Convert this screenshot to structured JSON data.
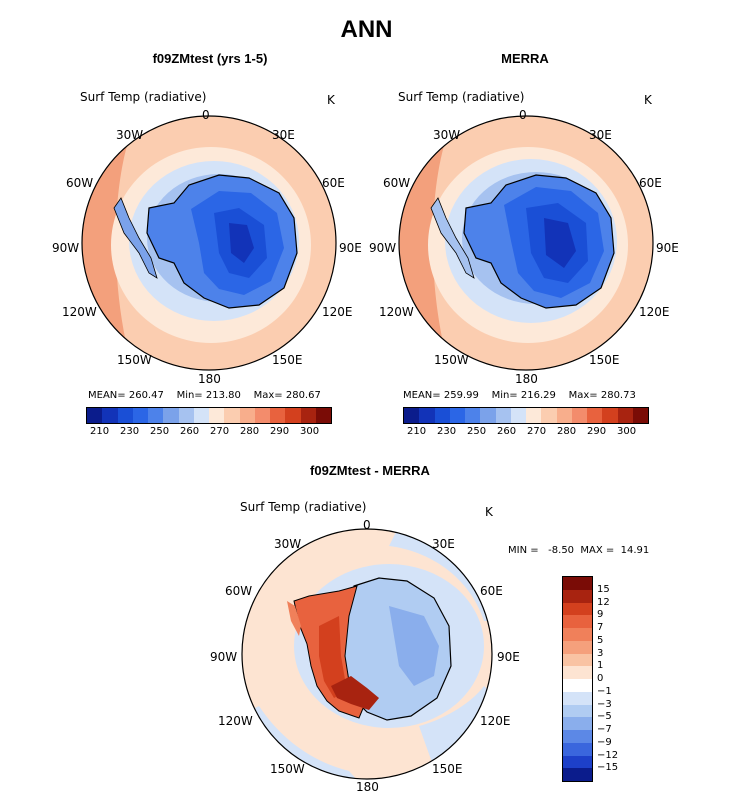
{
  "title": "ANN",
  "colors": {
    "scale_abs": [
      "#0b1c8c",
      "#1233b8",
      "#1a4fd6",
      "#2b66e6",
      "#4d82ea",
      "#7ba2ea",
      "#a6c2f0",
      "#d4e3f8",
      "#fde9d9",
      "#fbcdb0",
      "#f8ae8c",
      "#f38c6c",
      "#e8623e",
      "#d3401e",
      "#a82310",
      "#7a0c06"
    ],
    "scale_diff": [
      "#7a0c06",
      "#a82310",
      "#d3401e",
      "#e8623e",
      "#f0805a",
      "#f5a07c",
      "#f9c3a3",
      "#fde4d2",
      "#ffffff",
      "#d4e3f8",
      "#b0ccf2",
      "#8aaeec",
      "#5c88e6",
      "#3a66dd",
      "#1d40c9",
      "#0b1c8c"
    ]
  },
  "panels": [
    {
      "subtitle": "f09ZMtest (yrs 1-5)",
      "variable": "Surf Temp (radiative)",
      "units": "K",
      "lon_labels": [
        "0",
        "30E",
        "60E",
        "90E",
        "120E",
        "150E",
        "180",
        "150W",
        "120W",
        "90W",
        "60W",
        "30W"
      ],
      "mean_label": "MEAN=",
      "mean": "260.47",
      "min_label": "Min=",
      "min": "213.80",
      "max_label": "Max=",
      "max": "280.67",
      "ticks": [
        "210",
        "230",
        "250",
        "260",
        "270",
        "280",
        "290",
        "300"
      ]
    },
    {
      "subtitle": "MERRA",
      "variable": "Surf Temp (radiative)",
      "units": "K",
      "lon_labels": [
        "0",
        "30E",
        "60E",
        "90E",
        "120E",
        "150E",
        "180",
        "150W",
        "120W",
        "90W",
        "60W",
        "30W"
      ],
      "mean_label": "MEAN=",
      "mean": "259.99",
      "min_label": "Min=",
      "min": "216.29",
      "max_label": "Max=",
      "max": "280.73",
      "ticks": [
        "210",
        "230",
        "250",
        "260",
        "270",
        "280",
        "290",
        "300"
      ]
    }
  ],
  "diff": {
    "subtitle": "f09ZMtest - MERRA",
    "variable": "Surf Temp (radiative)",
    "units": "K",
    "lon_labels": [
      "0",
      "30E",
      "60E",
      "90E",
      "120E",
      "150E",
      "180",
      "150W",
      "120W",
      "90W",
      "60W",
      "30W"
    ],
    "min_label": "MIN =",
    "min": "-8.50",
    "max_label": "MAX =",
    "max": "14.91",
    "ticks": [
      "15",
      "12",
      "9",
      "7",
      "5",
      "3",
      "1",
      "0",
      "−1",
      "−3",
      "−5",
      "−7",
      "−9",
      "−12",
      "−15"
    ]
  }
}
